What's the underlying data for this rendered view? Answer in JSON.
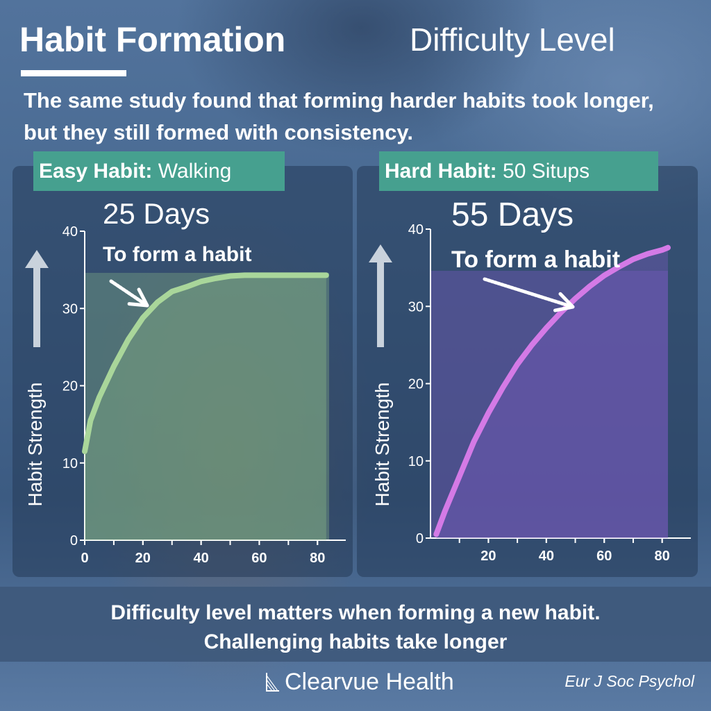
{
  "header": {
    "title": "Habit Formation",
    "subtitle": "Difficulty Level",
    "intro": "The same study found that forming harder habits took longer, but they still formed with consistency."
  },
  "colors": {
    "easy_line": "#a9d69a",
    "hard_line": "#d47ae6",
    "tag_bg": "#46a08f"
  },
  "footer": {
    "line1": "Difficulty level matters when forming a new habit.",
    "line2": "Challenging habits take longer",
    "brand": "Clearvue Health",
    "source": "Eur J Soc Psychol"
  },
  "chart_data": [
    {
      "type": "area",
      "tag_bold": "Easy Habit:",
      "tag_label": "Walking",
      "headline": "25 Days",
      "annotation": "To form a habit",
      "ylabel": "Habit Strength",
      "xlabel": "",
      "xlim": [
        0,
        84
      ],
      "ylim": [
        0,
        40
      ],
      "xticks": [
        0,
        20,
        40,
        60,
        80
      ],
      "yticks": [
        0,
        10,
        20,
        30,
        40
      ],
      "x": [
        0,
        2,
        5,
        10,
        15,
        20,
        25,
        30,
        35,
        40,
        45,
        50,
        55,
        60,
        65,
        70,
        75,
        80,
        83
      ],
      "y": [
        11.5,
        15.5,
        18.5,
        22.5,
        26,
        28.8,
        30.8,
        32.2,
        32.8,
        33.5,
        33.9,
        34.2,
        34.3,
        34.3,
        34.3,
        34.3,
        34.3,
        34.3,
        34.3
      ]
    },
    {
      "type": "area",
      "tag_bold": "Hard Habit:",
      "tag_label": "50 Situps",
      "headline": "55 Days",
      "annotation": "To form a habit",
      "ylabel": "Habit Strength",
      "xlabel": "",
      "xlim": [
        0,
        82
      ],
      "ylim": [
        0,
        40
      ],
      "xticks": [
        20,
        40,
        60,
        80
      ],
      "yticks": [
        0,
        10,
        20,
        30,
        40
      ],
      "x": [
        2,
        5,
        10,
        15,
        20,
        25,
        30,
        35,
        40,
        45,
        50,
        55,
        60,
        65,
        70,
        75,
        80,
        82
      ],
      "y": [
        0.5,
        3.5,
        8,
        12.5,
        16.2,
        19.5,
        22.5,
        25,
        27.2,
        29.2,
        31,
        32.6,
        34,
        35.1,
        36.1,
        36.8,
        37.3,
        37.6
      ]
    }
  ]
}
